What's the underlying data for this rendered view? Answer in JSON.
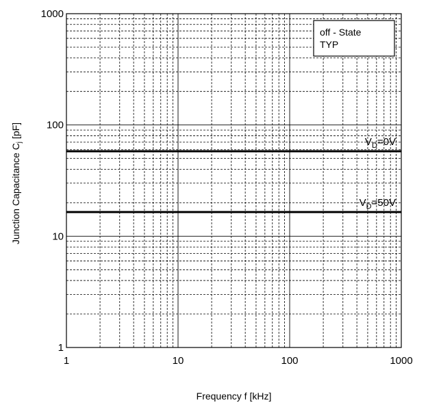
{
  "chart_data": {
    "type": "line",
    "xlabel": "Frequency  f  [kHz]",
    "ylabel": "Junction  Capacitance  C",
    "ylabel_sub": "j",
    "ylabel_unit": " [pF]",
    "xscale": "log",
    "yscale": "log",
    "xlim": [
      1,
      1000
    ],
    "ylim": [
      1,
      1000
    ],
    "grid": true,
    "x_ticks": [
      "1",
      "10",
      "100",
      "1000"
    ],
    "y_ticks": [
      "1",
      "10",
      "100",
      "1000"
    ],
    "legend": {
      "placement": "top-right",
      "lines": [
        "off - State",
        "TYP"
      ]
    },
    "series": [
      {
        "label_main": "V",
        "label_sub": "D",
        "label_rest": "=0V",
        "x": [
          1,
          1000
        ],
        "values": [
          58,
          58
        ]
      },
      {
        "label_main": "V",
        "label_sub": "D",
        "label_rest": "=50V",
        "x": [
          1,
          1000
        ],
        "values": [
          16.5,
          16.5
        ]
      }
    ]
  }
}
